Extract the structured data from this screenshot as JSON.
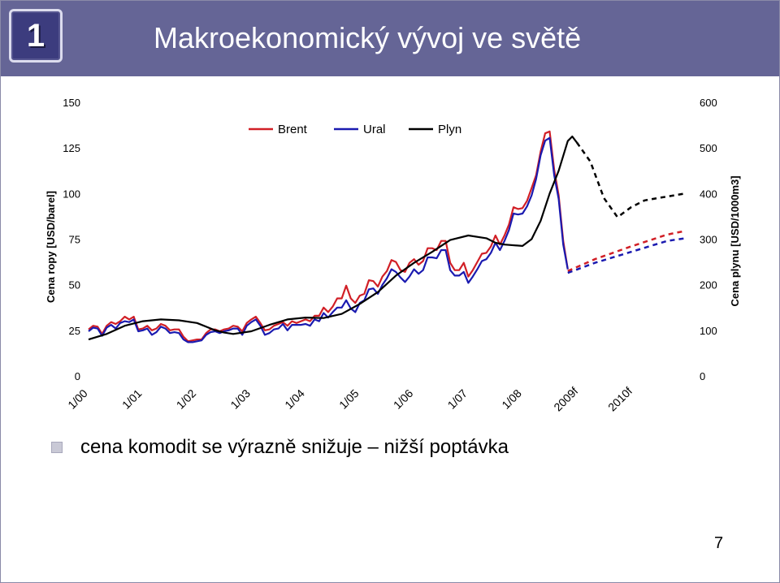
{
  "header": {
    "slide_number": "1",
    "title": "Makroekonomický vývoj ve světě"
  },
  "bullet": {
    "text": "cena komodit se výrazně snižuje – nižší poptávka"
  },
  "footer": {
    "page_number": "7"
  },
  "colors": {
    "header_bg": "#656596",
    "brent": "#d11f26",
    "ural": "#1a1ab0",
    "plyn": "#000000"
  },
  "chart_data": {
    "type": "line",
    "left_axis": {
      "label": "Cena ropy [USD/barel]",
      "ticks": [
        "0",
        "25",
        "50",
        "75",
        "100",
        "125",
        "150"
      ],
      "range": [
        0,
        150
      ]
    },
    "right_axis": {
      "label": "Cena plynu [USD/1000m3]",
      "ticks": [
        "0",
        "100",
        "200",
        "300",
        "400",
        "500",
        "600"
      ],
      "range": [
        0,
        600
      ]
    },
    "x_ticks": [
      {
        "label": "1/00",
        "t": 0
      },
      {
        "label": "1/01",
        "t": 12
      },
      {
        "label": "1/02",
        "t": 24
      },
      {
        "label": "1/03",
        "t": 36
      },
      {
        "label": "1/04",
        "t": 48
      },
      {
        "label": "1/05",
        "t": 60
      },
      {
        "label": "1/06",
        "t": 72
      },
      {
        "label": "1/07",
        "t": 84
      },
      {
        "label": "1/08",
        "t": 96
      },
      {
        "label": "2009f",
        "t": 108
      },
      {
        "label": "2010f",
        "t": 120
      }
    ],
    "x_range": [
      0,
      133
    ],
    "legend": {
      "placement": "top-center"
    },
    "series": [
      {
        "name": "Brent",
        "axis": "left",
        "color": "#d11f26",
        "values": [
          [
            0,
            25.5
          ],
          [
            1,
            27.5
          ],
          [
            2,
            27
          ],
          [
            3,
            23
          ],
          [
            4,
            27.5
          ],
          [
            5,
            29.5
          ],
          [
            6,
            28.5
          ],
          [
            7,
            30
          ],
          [
            8,
            32.5
          ],
          [
            9,
            31
          ],
          [
            10,
            32.5
          ],
          [
            11,
            25.5
          ],
          [
            12,
            26
          ],
          [
            13,
            27.5
          ],
          [
            14,
            25
          ],
          [
            15,
            26
          ],
          [
            16,
            28.5
          ],
          [
            17,
            27.5
          ],
          [
            18,
            25
          ],
          [
            19,
            25.5
          ],
          [
            20,
            25.5
          ],
          [
            21,
            21.5
          ],
          [
            22,
            19
          ],
          [
            23,
            19.5
          ],
          [
            24,
            20
          ],
          [
            25,
            20
          ],
          [
            26,
            23.5
          ],
          [
            27,
            25.5
          ],
          [
            28,
            25.5
          ],
          [
            29,
            24.5
          ],
          [
            30,
            25.5
          ],
          [
            31,
            26
          ],
          [
            32,
            27.5
          ],
          [
            33,
            27
          ],
          [
            34,
            24.5
          ],
          [
            35,
            29
          ],
          [
            36,
            31
          ],
          [
            37,
            32.5
          ],
          [
            38,
            29
          ],
          [
            39,
            25
          ],
          [
            40,
            25.5
          ],
          [
            41,
            27.5
          ],
          [
            42,
            28.5
          ],
          [
            43,
            29.5
          ],
          [
            44,
            27.5
          ],
          [
            45,
            30
          ],
          [
            46,
            29
          ],
          [
            47,
            30
          ],
          [
            48,
            31
          ],
          [
            49,
            30
          ],
          [
            50,
            33
          ],
          [
            51,
            33
          ],
          [
            52,
            37.5
          ],
          [
            53,
            35
          ],
          [
            54,
            38
          ],
          [
            55,
            42.5
          ],
          [
            56,
            42.5
          ],
          [
            57,
            49.5
          ],
          [
            58,
            42.5
          ],
          [
            59,
            40
          ],
          [
            60,
            44
          ],
          [
            61,
            45
          ],
          [
            62,
            52.5
          ],
          [
            63,
            52
          ],
          [
            64,
            49
          ],
          [
            65,
            54.5
          ],
          [
            66,
            57.5
          ],
          [
            67,
            63.5
          ],
          [
            68,
            62.5
          ],
          [
            69,
            58
          ],
          [
            70,
            57
          ],
          [
            71,
            62
          ],
          [
            72,
            64
          ],
          [
            73,
            61
          ],
          [
            74,
            63
          ],
          [
            75,
            70
          ],
          [
            76,
            70
          ],
          [
            77,
            69
          ],
          [
            78,
            74
          ],
          [
            79,
            74
          ],
          [
            80,
            62
          ],
          [
            81,
            58
          ],
          [
            82,
            58
          ],
          [
            83,
            62
          ],
          [
            84,
            54.5
          ],
          [
            85,
            58
          ],
          [
            86,
            62.5
          ],
          [
            87,
            67
          ],
          [
            88,
            67.5
          ],
          [
            89,
            71
          ],
          [
            90,
            77
          ],
          [
            91,
            72
          ],
          [
            92,
            77
          ],
          [
            93,
            83
          ],
          [
            94,
            92.5
          ],
          [
            95,
            91.5
          ],
          [
            96,
            92
          ],
          [
            97,
            96
          ],
          [
            98,
            103
          ],
          [
            99,
            110
          ],
          [
            100,
            123
          ],
          [
            101,
            133
          ],
          [
            102,
            134
          ],
          [
            103,
            113
          ],
          [
            104,
            99
          ],
          [
            105,
            74
          ],
          [
            106,
            58.5
          ]
        ]
      },
      {
        "name": "Ural",
        "axis": "left",
        "color": "#1a1ab0",
        "values": [
          [
            0,
            24.5
          ],
          [
            1,
            26.5
          ],
          [
            2,
            26
          ],
          [
            3,
            22
          ],
          [
            4,
            26.5
          ],
          [
            5,
            28
          ],
          [
            6,
            26
          ],
          [
            7,
            29
          ],
          [
            8,
            30
          ],
          [
            9,
            29.5
          ],
          [
            10,
            31
          ],
          [
            11,
            24.5
          ],
          [
            12,
            25
          ],
          [
            13,
            26
          ],
          [
            14,
            22.5
          ],
          [
            15,
            24
          ],
          [
            16,
            27
          ],
          [
            17,
            26
          ],
          [
            18,
            23.5
          ],
          [
            19,
            24
          ],
          [
            20,
            23.5
          ],
          [
            21,
            20
          ],
          [
            22,
            18.5
          ],
          [
            23,
            18.5
          ],
          [
            24,
            19
          ],
          [
            25,
            19.5
          ],
          [
            26,
            22.5
          ],
          [
            27,
            24
          ],
          [
            28,
            24.5
          ],
          [
            29,
            23.5
          ],
          [
            30,
            24.5
          ],
          [
            31,
            25
          ],
          [
            32,
            26
          ],
          [
            33,
            26
          ],
          [
            34,
            22.5
          ],
          [
            35,
            27.5
          ],
          [
            36,
            29.5
          ],
          [
            37,
            31
          ],
          [
            38,
            27.5
          ],
          [
            39,
            22.5
          ],
          [
            40,
            23.5
          ],
          [
            41,
            25.5
          ],
          [
            42,
            26
          ],
          [
            43,
            28.5
          ],
          [
            44,
            25
          ],
          [
            45,
            28
          ],
          [
            46,
            28
          ],
          [
            47,
            28
          ],
          [
            48,
            28.5
          ],
          [
            49,
            27.5
          ],
          [
            50,
            31
          ],
          [
            51,
            30
          ],
          [
            52,
            34.5
          ],
          [
            53,
            32
          ],
          [
            54,
            35
          ],
          [
            55,
            37.5
          ],
          [
            56,
            37.5
          ],
          [
            57,
            41.5
          ],
          [
            58,
            37
          ],
          [
            59,
            35
          ],
          [
            60,
            40
          ],
          [
            61,
            41.5
          ],
          [
            62,
            47.5
          ],
          [
            63,
            48
          ],
          [
            64,
            45
          ],
          [
            65,
            50
          ],
          [
            66,
            53.5
          ],
          [
            67,
            58.5
          ],
          [
            68,
            57
          ],
          [
            69,
            54
          ],
          [
            70,
            51.5
          ],
          [
            71,
            54.5
          ],
          [
            72,
            58.5
          ],
          [
            73,
            56
          ],
          [
            74,
            58
          ],
          [
            75,
            65
          ],
          [
            76,
            65
          ],
          [
            77,
            64.5
          ],
          [
            78,
            69
          ],
          [
            79,
            69
          ],
          [
            80,
            58
          ],
          [
            81,
            55
          ],
          [
            82,
            55
          ],
          [
            83,
            57
          ],
          [
            84,
            51
          ],
          [
            85,
            54.5
          ],
          [
            86,
            58.5
          ],
          [
            87,
            63
          ],
          [
            88,
            64
          ],
          [
            89,
            67.5
          ],
          [
            90,
            73
          ],
          [
            91,
            69
          ],
          [
            92,
            74
          ],
          [
            93,
            80
          ],
          [
            94,
            89
          ],
          [
            95,
            88.5
          ],
          [
            96,
            89
          ],
          [
            97,
            93
          ],
          [
            98,
            99
          ],
          [
            99,
            108
          ],
          [
            100,
            121
          ],
          [
            101,
            129
          ],
          [
            102,
            130.5
          ],
          [
            103,
            110
          ],
          [
            104,
            97
          ],
          [
            105,
            72
          ],
          [
            106,
            58.5
          ]
        ]
      },
      {
        "name": "Plyn",
        "axis": "right",
        "color": "#000000",
        "values": [
          [
            0,
            80
          ],
          [
            4,
            92
          ],
          [
            8,
            110
          ],
          [
            12,
            120
          ],
          [
            16,
            124
          ],
          [
            20,
            122
          ],
          [
            24,
            116
          ],
          [
            28,
            100
          ],
          [
            30,
            95
          ],
          [
            32,
            92
          ],
          [
            36,
            98
          ],
          [
            40,
            112
          ],
          [
            44,
            124
          ],
          [
            48,
            128
          ],
          [
            52,
            127
          ],
          [
            56,
            136
          ],
          [
            60,
            158
          ],
          [
            64,
            184
          ],
          [
            68,
            220
          ],
          [
            72,
            248
          ],
          [
            76,
            272
          ],
          [
            80,
            298
          ],
          [
            84,
            308
          ],
          [
            88,
            302
          ],
          [
            90,
            292
          ],
          [
            92,
            288
          ],
          [
            96,
            285
          ],
          [
            98,
            300
          ],
          [
            100,
            340
          ],
          [
            102,
            400
          ],
          [
            104,
            450
          ],
          [
            106,
            515
          ],
          [
            107,
            525
          ],
          [
            108,
            512
          ]
        ]
      },
      {
        "name": "Plyn",
        "axis": "right",
        "color": "#000000",
        "dashed": true,
        "values": [
          [
            108,
            512
          ],
          [
            111,
            470
          ],
          [
            114,
            390
          ],
          [
            117,
            348
          ],
          [
            120,
            370
          ],
          [
            123,
            385
          ],
          [
            126,
            390
          ],
          [
            129,
            395
          ],
          [
            132,
            400
          ]
        ]
      },
      {
        "name": "Brent",
        "axis": "left",
        "color": "#d11f26",
        "dashed": true,
        "values": [
          [
            106,
            57.5
          ],
          [
            112,
            64
          ],
          [
            120,
            71
          ],
          [
            128,
            77.5
          ],
          [
            132,
            79.5
          ]
        ]
      },
      {
        "name": "Ural",
        "axis": "left",
        "color": "#1a1ab0",
        "dashed": true,
        "values": [
          [
            106,
            56.5
          ],
          [
            112,
            62
          ],
          [
            120,
            68
          ],
          [
            128,
            74
          ],
          [
            132,
            75.5
          ]
        ]
      }
    ]
  }
}
